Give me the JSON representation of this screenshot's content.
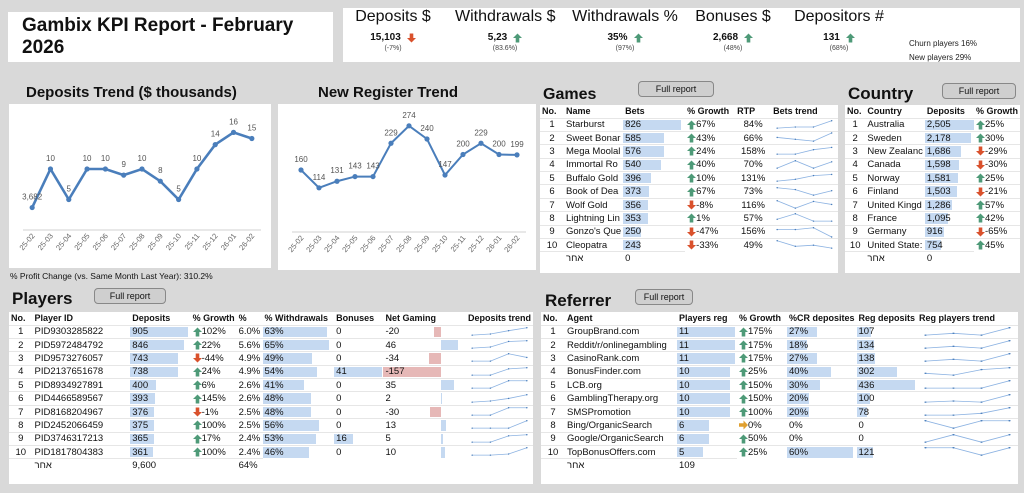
{
  "title": "Gambix KPI Report - February 2026",
  "colors": {
    "up": "#4e9a78",
    "down": "#d9512c",
    "flat": "#e0a030",
    "bar": "#c5d9f1",
    "neg": "#e6b8b7",
    "line": "#4a7ebb"
  },
  "kpis": [
    {
      "label": "Deposits $",
      "value": "15,103",
      "sub": "(-7%)",
      "dir": "down"
    },
    {
      "label": "Withdrawals $",
      "value": "5,23",
      "sub": "(83.6%)",
      "dir": "up"
    },
    {
      "label": "Withdrawals %",
      "value": "35%",
      "sub": "(97%)",
      "dir": "up"
    },
    {
      "label": "Bonuses $",
      "value": "2,668",
      "sub": "(48%)",
      "dir": "up"
    },
    {
      "label": "Depositors #",
      "value": "131",
      "sub": "(68%)",
      "dir": "up"
    }
  ],
  "churn": "Churn players 16%",
  "new_players": "New players 29%",
  "full_report": "Full report",
  "profit_change": "% Profit Change (vs. Same Month Last Year): 310.2%",
  "chart_data": [
    {
      "type": "line",
      "title": "Deposits Trend ($ thousands)",
      "categories": [
        "25-02",
        "25-03",
        "25-04",
        "25-05",
        "25-06",
        "25-07",
        "25-08",
        "25-09",
        "25-10",
        "25-11",
        "25-12",
        "26-01",
        "26-02"
      ],
      "values": [
        3.682,
        10,
        5,
        10,
        10,
        9,
        10,
        8,
        5,
        10,
        14,
        16,
        15
      ],
      "labels": [
        "3,682",
        "10",
        "5",
        "10",
        "10",
        "9",
        "10",
        "8",
        "5",
        "10",
        "14",
        "16",
        "15"
      ],
      "ylim": [
        0,
        20
      ]
    },
    {
      "type": "line",
      "title": "New Register Trend",
      "categories": [
        "25-02",
        "25-03",
        "25-04",
        "25-05",
        "25-06",
        "25-07",
        "25-08",
        "25-09",
        "25-10",
        "25-11",
        "25-12",
        "26-01",
        "26-02"
      ],
      "values": [
        160,
        114,
        131,
        143,
        143,
        229,
        274,
        240,
        147,
        200,
        229,
        200,
        199
      ],
      "labels": [
        "160",
        "114",
        "131",
        "143",
        "143",
        "229",
        "274",
        "240",
        "147",
        "200",
        "229",
        "200",
        "199"
      ],
      "ylim": [
        0,
        320
      ]
    }
  ],
  "games": {
    "title": "Games",
    "headers": [
      "No.",
      "Name",
      "Bets",
      "% Growth",
      "RTP",
      "Bets trend"
    ],
    "rows": [
      [
        "1",
        "Starburst",
        "826",
        "67%",
        "84%",
        "up",
        [
          1,
          1.3,
          1.3,
          3
        ]
      ],
      [
        "2",
        "Sweet Bonar",
        "585",
        "43%",
        "66%",
        "up",
        [
          2,
          1.5,
          1,
          3.2
        ]
      ],
      [
        "3",
        "Mega Moolal",
        "576",
        "24%",
        "158%",
        "up",
        [
          1,
          1,
          2.2,
          2.8
        ]
      ],
      [
        "4",
        "Immortal Ro",
        "540",
        "40%",
        "70%",
        "up",
        [
          1,
          3,
          1,
          2.7
        ]
      ],
      [
        "5",
        "Buffalo Gold",
        "396",
        "10%",
        "131%",
        "up",
        [
          1,
          1.5,
          2.5,
          2.8
        ]
      ],
      [
        "6",
        "Book of Dea",
        "373",
        "67%",
        "73%",
        "up",
        [
          3,
          2.5,
          1,
          2.2
        ]
      ],
      [
        "7",
        "Wolf Gold",
        "356",
        "-8%",
        "116%",
        "down",
        [
          3,
          1,
          2.8,
          2
        ]
      ],
      [
        "8",
        "Lightning Lin",
        "353",
        "1%",
        "57%",
        "up",
        [
          1.5,
          3,
          1,
          1
        ]
      ],
      [
        "9",
        "Gonzo's Que",
        "250",
        "-47%",
        "156%",
        "down",
        [
          2.5,
          2.5,
          3,
          0.5
        ]
      ],
      [
        "10",
        "Cleopatra",
        "243",
        "-33%",
        "49%",
        "down",
        [
          3,
          1.5,
          1.8,
          1
        ]
      ]
    ],
    "other": {
      "label": "אחר",
      "value": "0"
    }
  },
  "country": {
    "title": "Country",
    "headers": [
      "No.",
      "Country",
      "Deposits",
      "% Growth"
    ],
    "rows": [
      [
        "1",
        "Australia",
        "2,505",
        "25%",
        "up"
      ],
      [
        "2",
        "Sweden",
        "2,178",
        "30%",
        "up"
      ],
      [
        "3",
        "New Zealanc",
        "1,686",
        "-29%",
        "down"
      ],
      [
        "4",
        "Canada",
        "1,598",
        "-30%",
        "down"
      ],
      [
        "5",
        "Norway",
        "1,581",
        "25%",
        "up"
      ],
      [
        "6",
        "Finland",
        "1,503",
        "-21%",
        "down"
      ],
      [
        "7",
        "United Kingd",
        "1,286",
        "57%",
        "up"
      ],
      [
        "8",
        "France",
        "1,095",
        "42%",
        "up"
      ],
      [
        "9",
        "Germany",
        "916",
        "-65%",
        "down"
      ],
      [
        "10",
        "United State:",
        "754",
        "45%",
        "up"
      ]
    ],
    "other": {
      "label": "אחר",
      "value": "0"
    }
  },
  "players": {
    "title": "Players",
    "headers": [
      "No.",
      "Player ID",
      "Deposits",
      "% Growth",
      "%",
      "% Withdrawals",
      "Bonuses",
      "Net Gaming",
      "Deposits trend"
    ],
    "rows": [
      [
        "1",
        "PID9303285822",
        "905",
        "102%",
        "6.0%",
        "63%",
        "0",
        "-20",
        "up",
        [
          1,
          1.3,
          2.2,
          3
        ]
      ],
      [
        "2",
        "PID5972484792",
        "846",
        "22%",
        "5.6%",
        "65%",
        "0",
        "46",
        "up",
        [
          1,
          1.3,
          2.8,
          3
        ]
      ],
      [
        "3",
        "PID9573276057",
        "743",
        "-44%",
        "4.9%",
        "49%",
        "0",
        "-34",
        "down",
        [
          1,
          1,
          3,
          2
        ]
      ],
      [
        "4",
        "PID2137651678",
        "738",
        "24%",
        "4.9%",
        "54%",
        "41",
        "-157",
        "up",
        [
          1,
          1,
          2.7,
          3
        ]
      ],
      [
        "5",
        "PID8934927891",
        "400",
        "6%",
        "2.6%",
        "41%",
        "0",
        "35",
        "up",
        [
          1,
          1,
          3,
          3
        ]
      ],
      [
        "6",
        "PID4466589567",
        "393",
        "145%",
        "2.6%",
        "48%",
        "0",
        "2",
        "up",
        [
          1,
          1.3,
          2,
          3
        ]
      ],
      [
        "7",
        "PID8168204967",
        "376",
        "-1%",
        "2.5%",
        "48%",
        "0",
        "-30",
        "down",
        [
          1,
          1,
          3,
          3
        ]
      ],
      [
        "8",
        "PID2452066459",
        "375",
        "100%",
        "2.5%",
        "56%",
        "0",
        "13",
        "up",
        [
          1,
          1,
          1,
          3
        ]
      ],
      [
        "9",
        "PID3746317213",
        "365",
        "17%",
        "2.4%",
        "53%",
        "16",
        "5",
        "up",
        [
          1,
          1,
          2.7,
          3
        ]
      ],
      [
        "10",
        "PID1817804383",
        "361",
        "100%",
        "2.4%",
        "46%",
        "0",
        "10",
        "up",
        [
          1,
          1,
          1.3,
          3
        ]
      ]
    ],
    "other": {
      "label": "אחר",
      "deposits": "9,600",
      "pct": "64%"
    }
  },
  "referrer": {
    "title": "Referrer",
    "headers": [
      "No.",
      "Agent",
      "Players reg",
      "% Growth",
      "%CR deposites",
      "Reg deposits",
      "Reg players trend"
    ],
    "rows": [
      [
        "1",
        "GroupBrand.com",
        "11",
        "175%",
        "27%",
        "107",
        "up",
        [
          1,
          1.5,
          1,
          3
        ]
      ],
      [
        "2",
        "Reddit/r/onlinegambling",
        "11",
        "175%",
        "18%",
        "134",
        "up",
        [
          1,
          1.5,
          1,
          3
        ]
      ],
      [
        "3",
        "CasinoRank.com",
        "11",
        "175%",
        "27%",
        "138",
        "up",
        [
          1,
          1.5,
          1,
          3
        ]
      ],
      [
        "4",
        "BonusFinder.com",
        "10",
        "25%",
        "40%",
        "302",
        "up",
        [
          1.5,
          1,
          2.5,
          3
        ]
      ],
      [
        "5",
        "LCB.org",
        "10",
        "150%",
        "30%",
        "436",
        "up",
        [
          1,
          1,
          1,
          3
        ]
      ],
      [
        "6",
        "GamblingTherapy.org",
        "10",
        "150%",
        "20%",
        "100",
        "up",
        [
          1,
          1.3,
          1,
          3
        ]
      ],
      [
        "7",
        "SMSPromotion",
        "10",
        "100%",
        "20%",
        "78",
        "up",
        [
          1,
          1,
          1.5,
          3
        ]
      ],
      [
        "8",
        "Bing/OrganicSearch",
        "6",
        "0%",
        "0%",
        "0",
        "flat",
        [
          3,
          1,
          3,
          3
        ]
      ],
      [
        "9",
        "Google/OrganicSearch",
        "6",
        "50%",
        "0%",
        "0",
        "up",
        [
          1,
          3,
          1,
          3
        ]
      ],
      [
        "10",
        "TopBonusOffers.com",
        "5",
        "25%",
        "60%",
        "121",
        "up",
        [
          3,
          3,
          1,
          3
        ]
      ]
    ],
    "other": {
      "label": "אחר",
      "value": "109"
    }
  }
}
